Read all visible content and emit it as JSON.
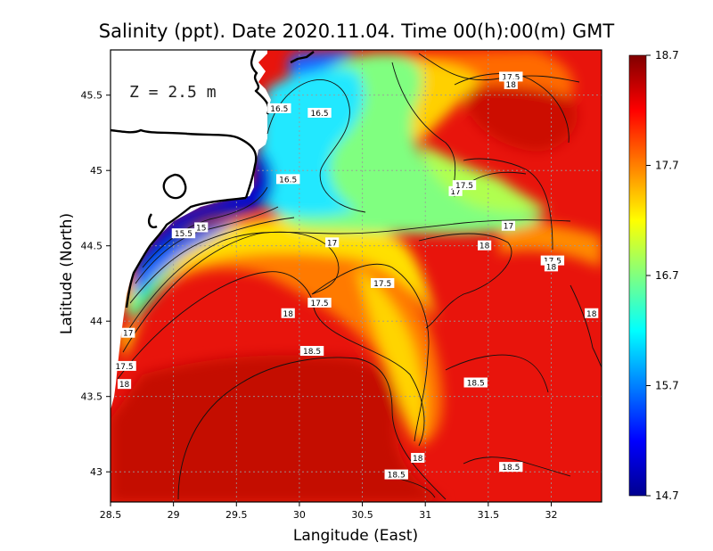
{
  "chart_data": {
    "type": "heatmap",
    "title": "Salinity (ppt). Date 2020.11.04. Time 00(h):00(m) GMT",
    "xlabel": "Langitude (East)",
    "ylabel": "Latitude (North)",
    "depth_label": "Z = 2.5 m",
    "xlim": [
      28.5,
      32.4
    ],
    "ylim": [
      42.8,
      45.8
    ],
    "x_ticks": [
      "28.5",
      "29",
      "29.5",
      "30",
      "30.5",
      "31",
      "31.5",
      "32"
    ],
    "x_tick_values": [
      28.5,
      29,
      29.5,
      30,
      30.5,
      31,
      31.5,
      32
    ],
    "y_ticks": [
      "43",
      "43.5",
      "44",
      "44.5",
      "45",
      "45.5"
    ],
    "y_tick_values": [
      43,
      43.5,
      44,
      44.5,
      45,
      45.5
    ],
    "grid": true,
    "colorbar": {
      "min": 14.7,
      "max": 18.7,
      "ticks": [
        "18.7",
        "17.7",
        "16.7",
        "15.7",
        "14.7"
      ],
      "tick_values": [
        18.7,
        17.7,
        16.7,
        15.7,
        14.7
      ],
      "colormap": "jet",
      "colors": [
        "#00008f",
        "#0000ff",
        "#0080ff",
        "#00ffff",
        "#80ff80",
        "#ffff00",
        "#ff8000",
        "#ff0000",
        "#800000"
      ]
    },
    "contour_levels": [
      15,
      15.5,
      16.5,
      17,
      17.5,
      18,
      18.5
    ],
    "contour_labels": [
      {
        "text": "15",
        "lon": 29.22,
        "lat": 44.62
      },
      {
        "text": "15.5",
        "lon": 29.08,
        "lat": 44.58
      },
      {
        "text": "16.5",
        "lon": 29.84,
        "lat": 45.41
      },
      {
        "text": "16.5",
        "lon": 30.16,
        "lat": 45.38
      },
      {
        "text": "16.5",
        "lon": 29.91,
        "lat": 44.94
      },
      {
        "text": "17",
        "lon": 30.26,
        "lat": 44.52
      },
      {
        "text": "17",
        "lon": 31.24,
        "lat": 44.86
      },
      {
        "text": "17",
        "lon": 31.66,
        "lat": 44.63
      },
      {
        "text": "17",
        "lon": 28.64,
        "lat": 43.92
      },
      {
        "text": "17.5",
        "lon": 31.68,
        "lat": 45.62
      },
      {
        "text": "17.5",
        "lon": 31.31,
        "lat": 44.9
      },
      {
        "text": "17.5",
        "lon": 30.66,
        "lat": 44.25
      },
      {
        "text": "17.5",
        "lon": 30.16,
        "lat": 44.12
      },
      {
        "text": "17.5",
        "lon": 32.01,
        "lat": 44.4
      },
      {
        "text": "17.5",
        "lon": 28.61,
        "lat": 43.7
      },
      {
        "text": "18",
        "lon": 31.68,
        "lat": 45.57
      },
      {
        "text": "18",
        "lon": 31.47,
        "lat": 44.5
      },
      {
        "text": "18",
        "lon": 32.0,
        "lat": 44.36
      },
      {
        "text": "18",
        "lon": 29.91,
        "lat": 44.05
      },
      {
        "text": "18",
        "lon": 32.32,
        "lat": 44.05
      },
      {
        "text": "18",
        "lon": 28.61,
        "lat": 43.58
      },
      {
        "text": "18",
        "lon": 30.94,
        "lat": 43.09
      },
      {
        "text": "18.5",
        "lon": 30.1,
        "lat": 43.8
      },
      {
        "text": "18.5",
        "lon": 31.4,
        "lat": 43.59
      },
      {
        "text": "18.5",
        "lon": 31.68,
        "lat": 43.03
      },
      {
        "text": "18.5",
        "lon": 30.77,
        "lat": 42.98
      }
    ]
  }
}
